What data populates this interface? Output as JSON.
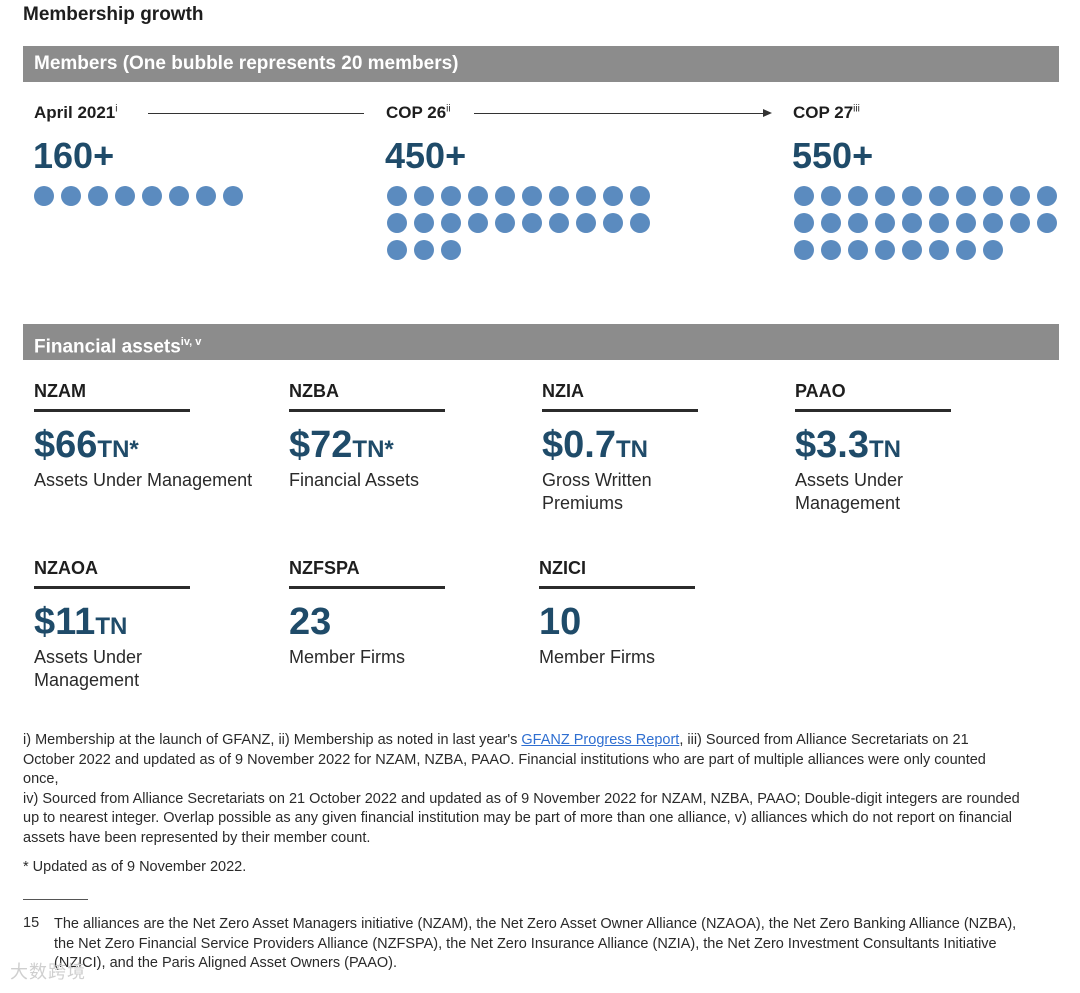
{
  "page_title": "Membership growth",
  "members_banner": "Members (One bubble represents 20 members)",
  "milestones": [
    {
      "label": "April 2021",
      "sup": "i",
      "count": "160+",
      "bubbles": 8
    },
    {
      "label": "COP 26",
      "sup": "ii",
      "count": "450+",
      "bubbles": 23
    },
    {
      "label": "COP 27",
      "sup": "iii",
      "count": "550+",
      "bubbles": 28
    }
  ],
  "assets_banner": {
    "text": "Financial assets",
    "sup": "iv, v"
  },
  "assets": [
    {
      "name": "NZAM",
      "value": "$66",
      "unit": "TN*",
      "desc": "Assets Under Management"
    },
    {
      "name": "NZBA",
      "value": "$72",
      "unit": "TN*",
      "desc": "Financial Assets"
    },
    {
      "name": "NZIA",
      "value": "$0.7",
      "unit": "TN",
      "desc": "Gross Written Premiums"
    },
    {
      "name": "PAAO",
      "value": "$3.3",
      "unit": "TN",
      "desc": "Assets Under Management"
    },
    {
      "name": "NZAOA",
      "value": "$11",
      "unit": "TN",
      "desc": "Assets Under Management"
    },
    {
      "name": "NZFSPA",
      "value": "23",
      "unit": "",
      "desc": "Member Firms"
    },
    {
      "name": "NZICI",
      "value": "10",
      "unit": "",
      "desc": "Member Firms"
    }
  ],
  "notes": {
    "part1": "i) Membership at the launch of GFANZ, ii) Membership as noted in last year's ",
    "link": "GFANZ Progress Report",
    "part2": ", iii) Sourced from Alliance Secretariats on 21 October 2022 and updated as of 9 November 2022 for NZAM, NZBA, PAAO. Financial institutions who are part of multiple alliances were only counted once,",
    "part3": "iv) Sourced from Alliance Secretariats on 21 October 2022 and updated as of 9 November 2022 for NZAM, NZBA, PAAO; Double-digit integers are rounded up to nearest integer. Overlap possible as any given financial institution may be part of more than one alliance, v) alliances which do not report on financial assets have been represented by their member count."
  },
  "star_note": "* Updated as of 9 November 2022.",
  "footnote": {
    "number": "15",
    "text": "The alliances are the Net Zero Asset Managers initiative (NZAM), the Net Zero Asset Owner Alliance (NZAOA), the Net Zero Banking Alliance (NZBA), the Net Zero Financial Service Providers Alliance (NZFSPA), the Net Zero Insurance Alliance (NZIA), the Net Zero Investment Consultants Initiative (NZICI), and the Paris Aligned Asset Owners (PAAO)."
  },
  "watermark": "大数跨境",
  "colors": {
    "accent": "#1f4b69",
    "bubble": "#5b8bbf",
    "banner": "#8c8c8c"
  }
}
